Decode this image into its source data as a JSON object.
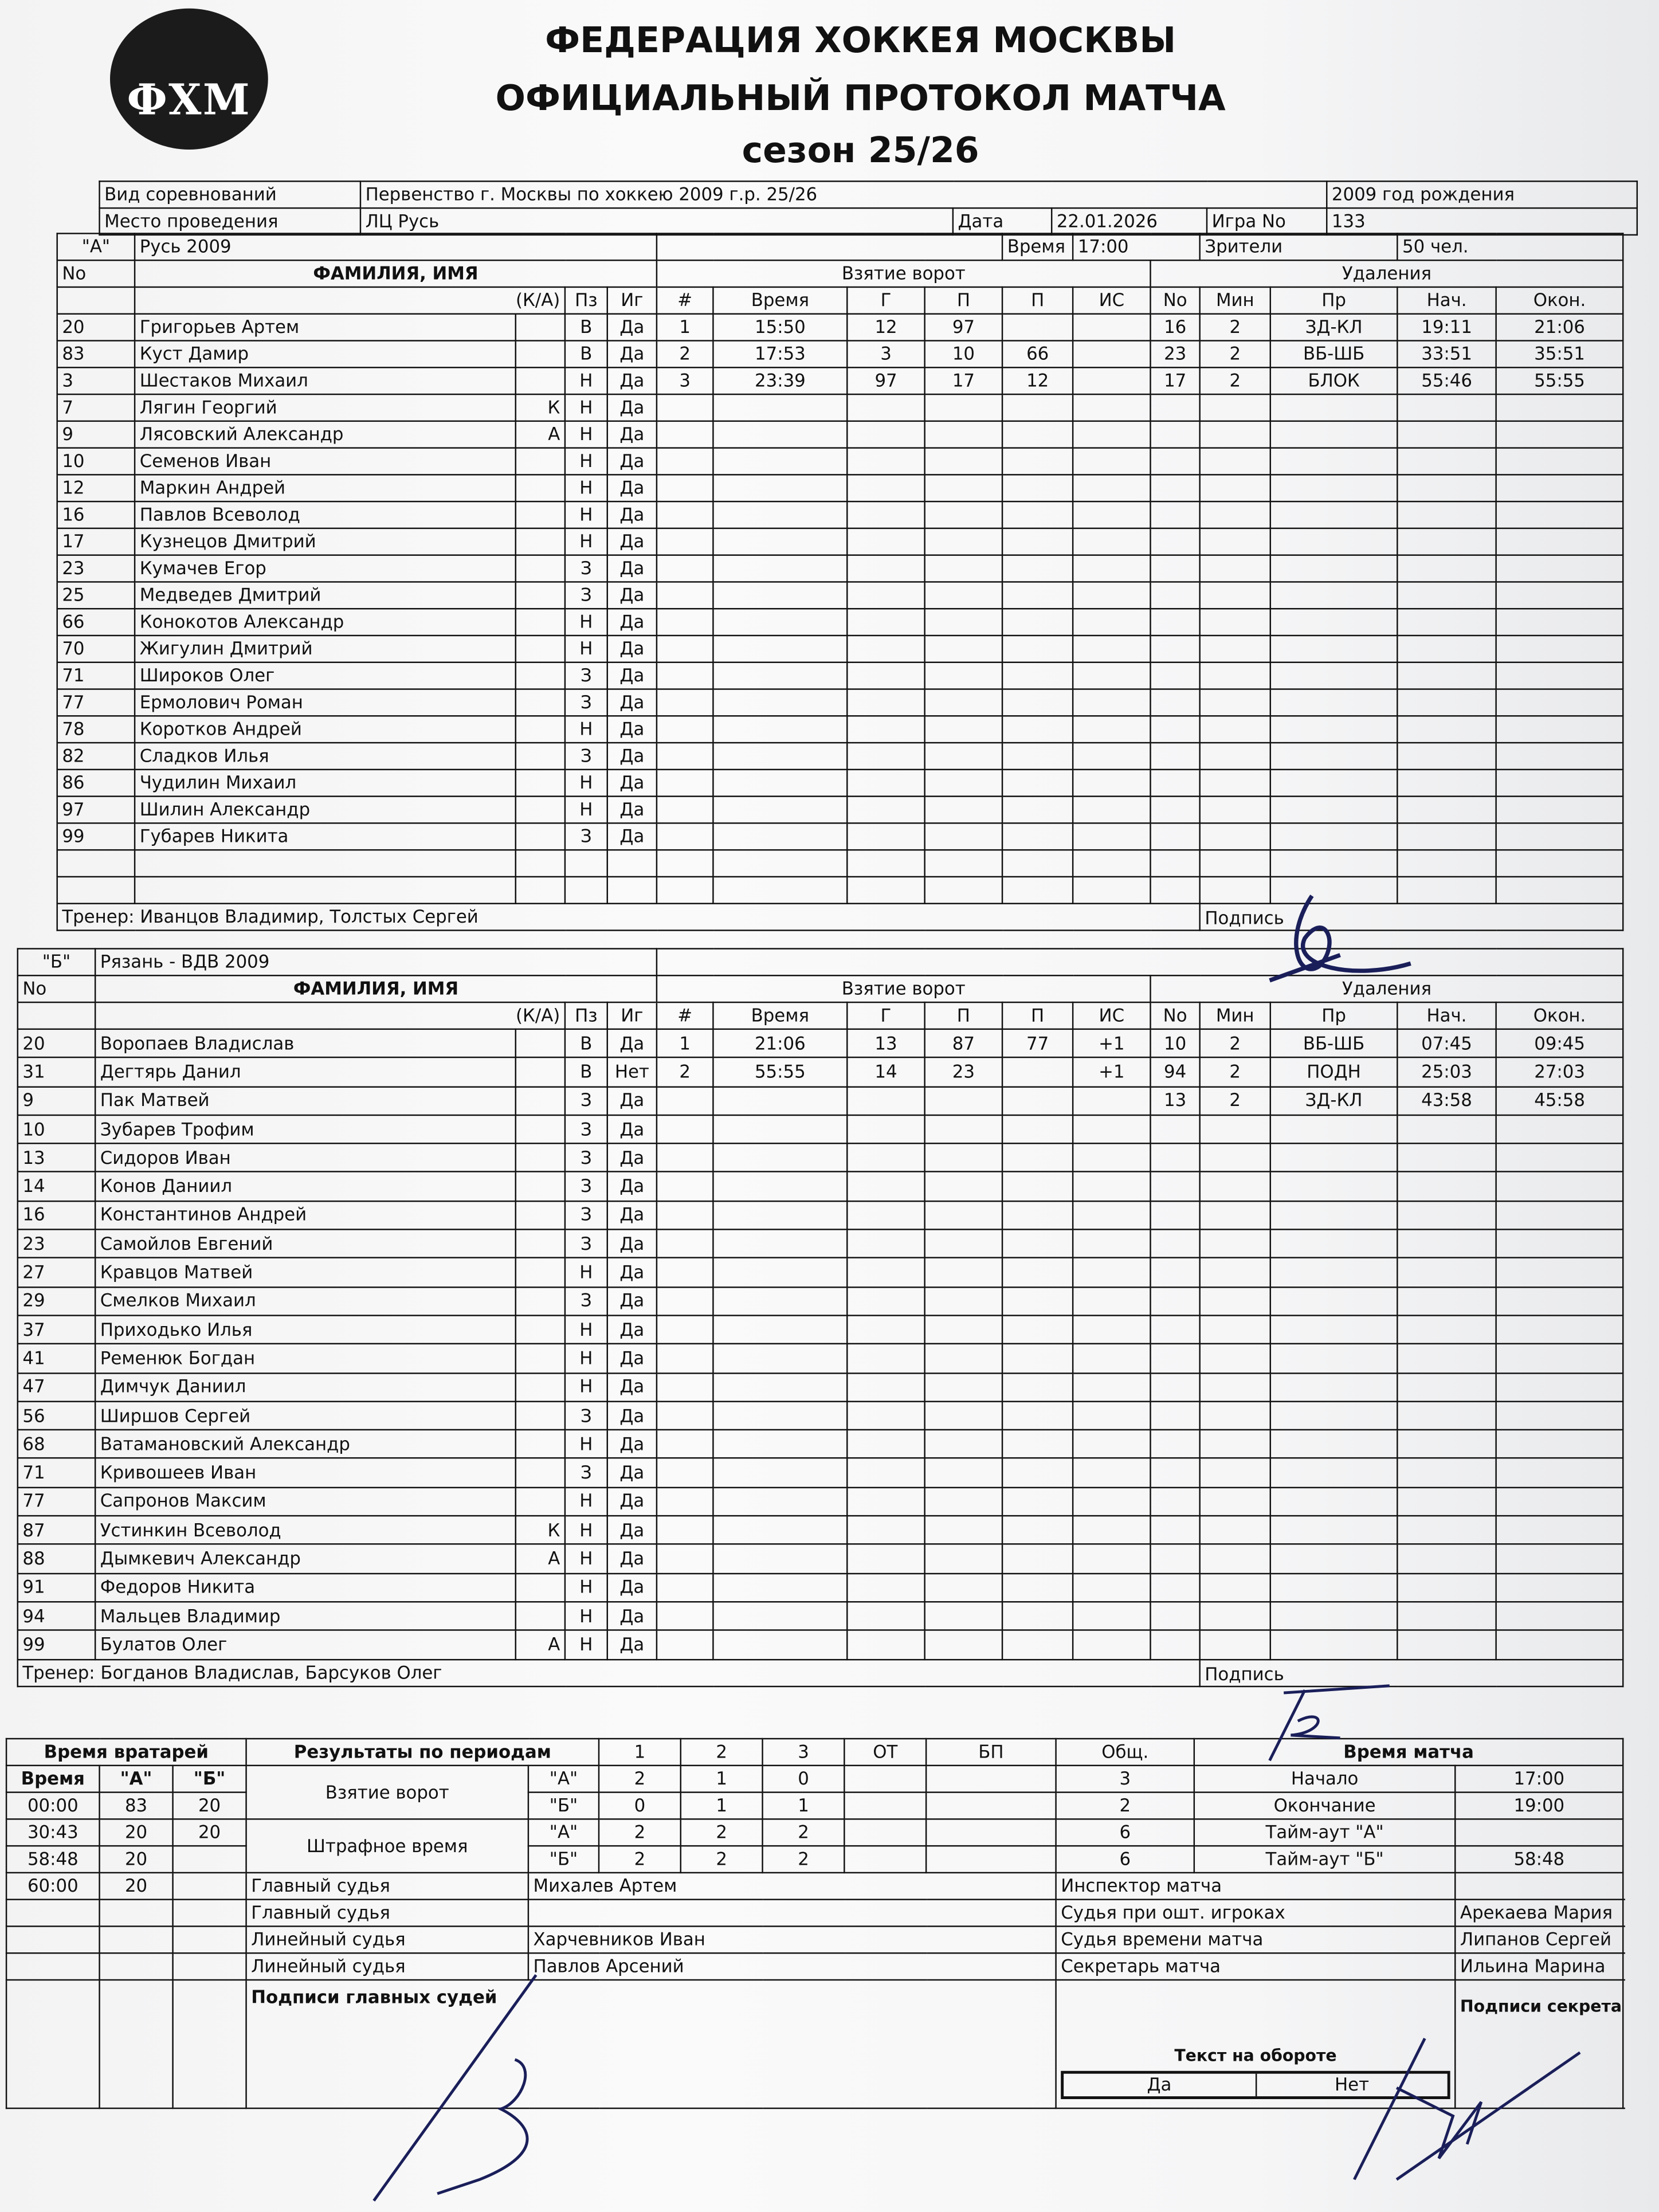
{
  "header": {
    "logo_text": "ФХМ",
    "title1": "ФЕДЕРАЦИЯ ХОККЕЯ МОСКВЫ",
    "title2": "ОФИЦИАЛЬНЫЙ ПРОТОКОЛ МАТЧА",
    "title3": "сезон 25/26"
  },
  "info": {
    "competition_label": "Вид соревнований",
    "competition": "Первенство г. Москвы по хоккею 2009 г.р. 25/26",
    "birth_year": "2009 год рождения",
    "venue_label": "Место проведения",
    "venue": "ЛЦ Русь",
    "date_label": "Дата",
    "date": "22.01.2026",
    "game_label": "Игра No",
    "game": "133",
    "time_label": "Время",
    "time": "17:00",
    "spectators_label": "Зрители",
    "spectators": "50 чел."
  },
  "columns": {
    "no": "No",
    "name": "ФАМИЛИЯ, ИМЯ",
    "ka": "(К/А)",
    "pz": "Пз",
    "ig": "Иг",
    "goals_title": "Взятие ворот",
    "num": "#",
    "time": "Время",
    "g": "Г",
    "p1": "П",
    "p2": "П",
    "is": "ИС",
    "pen_title": "Удаления",
    "pen_no": "No",
    "pen_min": "Мин",
    "pen_pr": "Пр",
    "pen_start": "Нач.",
    "pen_end": "Окон."
  },
  "teamA": {
    "label": "\"А\"",
    "name": "Русь 2009",
    "coach": "Тренер: Иванцов Владимир, Толстых Сергей",
    "signature_label": "Подпись",
    "players": [
      [
        "20",
        "Григорьев Артем",
        "",
        "В",
        "Да"
      ],
      [
        "83",
        "Куст Дамир",
        "",
        "В",
        "Да"
      ],
      [
        "3",
        "Шестаков Михаил",
        "",
        "Н",
        "Да"
      ],
      [
        "7",
        "Лягин Георгий",
        "К",
        "Н",
        "Да"
      ],
      [
        "9",
        "Лясовский Александр",
        "А",
        "Н",
        "Да"
      ],
      [
        "10",
        "Семенов Иван",
        "",
        "Н",
        "Да"
      ],
      [
        "12",
        "Маркин Андрей",
        "",
        "Н",
        "Да"
      ],
      [
        "16",
        "Павлов Всеволод",
        "",
        "Н",
        "Да"
      ],
      [
        "17",
        "Кузнецов Дмитрий",
        "",
        "Н",
        "Да"
      ],
      [
        "23",
        "Кумачев Егор",
        "",
        "З",
        "Да"
      ],
      [
        "25",
        "Медведев Дмитрий",
        "",
        "З",
        "Да"
      ],
      [
        "66",
        "Конокотов Александр",
        "",
        "Н",
        "Да"
      ],
      [
        "70",
        "Жигулин Дмитрий",
        "",
        "Н",
        "Да"
      ],
      [
        "71",
        "Широков Олег",
        "",
        "З",
        "Да"
      ],
      [
        "77",
        "Ермолович Роман",
        "",
        "З",
        "Да"
      ],
      [
        "78",
        "Коротков Андрей",
        "",
        "Н",
        "Да"
      ],
      [
        "82",
        "Сладков Илья",
        "",
        "З",
        "Да"
      ],
      [
        "86",
        "Чудилин Михаил",
        "",
        "Н",
        "Да"
      ],
      [
        "97",
        "Шилин Александр",
        "",
        "Н",
        "Да"
      ],
      [
        "99",
        "Губарев Никита",
        "",
        "З",
        "Да"
      ]
    ],
    "goals": [
      [
        "1",
        "15:50",
        "12",
        "97",
        "",
        ""
      ],
      [
        "2",
        "17:53",
        "3",
        "10",
        "66",
        ""
      ],
      [
        "3",
        "23:39",
        "97",
        "17",
        "12",
        ""
      ]
    ],
    "penalties": [
      [
        "16",
        "2",
        "ЗД-КЛ",
        "19:11",
        "21:06"
      ],
      [
        "23",
        "2",
        "ВБ-ШБ",
        "33:51",
        "35:51"
      ],
      [
        "17",
        "2",
        "БЛОК",
        "55:46",
        "55:55"
      ]
    ]
  },
  "teamB": {
    "label": "\"Б\"",
    "name": "Рязань - ВДВ 2009",
    "coach": "Тренер: Богданов Владислав, Барсуков Олег",
    "signature_label": "Подпись",
    "players": [
      [
        "20",
        "Воропаев Владислав",
        "",
        "В",
        "Да"
      ],
      [
        "31",
        "Дегтярь Данил",
        "",
        "В",
        "Нет"
      ],
      [
        "9",
        "Пак Матвей",
        "",
        "З",
        "Да"
      ],
      [
        "10",
        "Зубарев Трофим",
        "",
        "З",
        "Да"
      ],
      [
        "13",
        "Сидоров Иван",
        "",
        "З",
        "Да"
      ],
      [
        "14",
        "Конов Даниил",
        "",
        "З",
        "Да"
      ],
      [
        "16",
        "Константинов Андрей",
        "",
        "З",
        "Да"
      ],
      [
        "23",
        "Самойлов Евгений",
        "",
        "З",
        "Да"
      ],
      [
        "27",
        "Кравцов Матвей",
        "",
        "Н",
        "Да"
      ],
      [
        "29",
        "Смелков Михаил",
        "",
        "З",
        "Да"
      ],
      [
        "37",
        "Приходько Илья",
        "",
        "Н",
        "Да"
      ],
      [
        "41",
        "Ременюк Богдан",
        "",
        "Н",
        "Да"
      ],
      [
        "47",
        "Димчук Даниил",
        "",
        "Н",
        "Да"
      ],
      [
        "56",
        "Ширшов Сергей",
        "",
        "З",
        "Да"
      ],
      [
        "68",
        "Ватамановский Александр",
        "",
        "Н",
        "Да"
      ],
      [
        "71",
        "Кривошеев Иван",
        "",
        "З",
        "Да"
      ],
      [
        "77",
        "Сапронов Максим",
        "",
        "Н",
        "Да"
      ],
      [
        "87",
        "Устинкин Всеволод",
        "К",
        "Н",
        "Да"
      ],
      [
        "88",
        "Дымкевич Александр",
        "А",
        "Н",
        "Да"
      ],
      [
        "91",
        "Федоров Никита",
        "",
        "Н",
        "Да"
      ],
      [
        "94",
        "Мальцев Владимир",
        "",
        "Н",
        "Да"
      ],
      [
        "99",
        "Булатов Олег",
        "А",
        "Н",
        "Да"
      ]
    ],
    "goals": [
      [
        "1",
        "21:06",
        "13",
        "87",
        "77",
        "+1"
      ],
      [
        "2",
        "55:55",
        "14",
        "23",
        "",
        "+1"
      ]
    ],
    "penalties": [
      [
        "10",
        "2",
        "ВБ-ШБ",
        "07:45",
        "09:45"
      ],
      [
        "94",
        "2",
        "ПОДН",
        "25:03",
        "27:03"
      ],
      [
        "13",
        "2",
        "ЗД-КЛ",
        "43:58",
        "45:58"
      ]
    ]
  },
  "goalies": {
    "title": "Время вратарей",
    "h_time": "Время",
    "h_a": "\"А\"",
    "h_b": "\"Б\"",
    "rows": [
      [
        "00:00",
        "83",
        "20"
      ],
      [
        "30:43",
        "20",
        "20"
      ],
      [
        "58:48",
        "20",
        ""
      ],
      [
        "60:00",
        "20",
        ""
      ]
    ]
  },
  "results": {
    "title": "Результаты по периодам",
    "p1": "1",
    "p2": "2",
    "p3": "3",
    "ot": "ОТ",
    "bp": "БП",
    "total": "Общ.",
    "goals_label": "Взятие ворот",
    "pim_label": "Штрафное время",
    "a": "\"А\"",
    "b": "\"Б\"",
    "goals_a": [
      "2",
      "1",
      "0",
      "",
      "",
      "3"
    ],
    "goals_b": [
      "0",
      "1",
      "1",
      "",
      "",
      "2"
    ],
    "pim_a": [
      "2",
      "2",
      "2",
      "",
      "",
      "6"
    ],
    "pim_b": [
      "2",
      "2",
      "2",
      "",
      "",
      "6"
    ]
  },
  "match_time": {
    "title": "Время матча",
    "start_label": "Начало",
    "start": "17:00",
    "end_label": "Окончание",
    "end": "19:00",
    "timeout_a_label": "Тайм-аут \"А\"",
    "timeout_a": "",
    "timeout_b_label": "Тайм-аут \"Б\"",
    "timeout_b": "58:48"
  },
  "officials": {
    "ref1_label": "Главный судья",
    "ref1": "Михалев Артем",
    "ref2_label": "Главный судья",
    "ref2": "",
    "line1_label": "Линейный судья",
    "line1": "Харчевников Иван",
    "line2_label": "Линейный судья",
    "line2": "Павлов Арсений",
    "inspector_label": "Инспектор матча",
    "inspector": "",
    "penalty_judge_label": "Судья при ошт. игроках",
    "penalty_judge": "Арекаева Мария",
    "timekeeper_label": "Судья времени матча",
    "timekeeper": "Липанов Сергей",
    "secretary_label": "Секретарь матча",
    "secretary": "Ильина Марина",
    "ref_signatures_label": "Подписи главных судей",
    "secretary_signature_label": "Подписи секретаря",
    "reverse_label": "Текст на обороте",
    "yes": "Да",
    "no": "Нет"
  }
}
